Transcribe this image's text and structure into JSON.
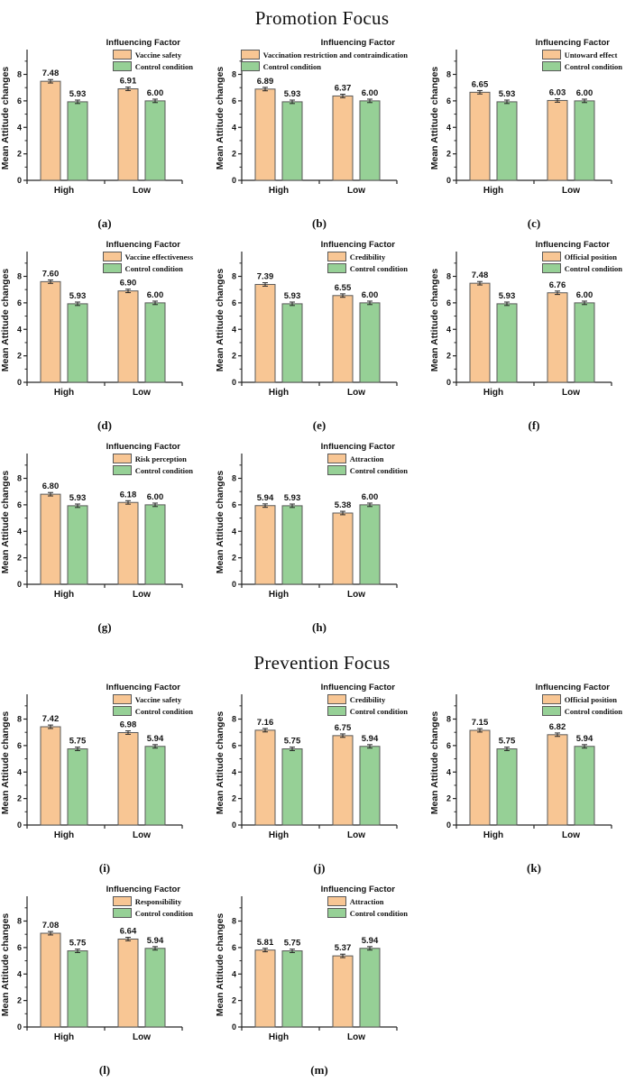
{
  "figure": {
    "sections": [
      {
        "title": "Promotion Focus"
      },
      {
        "title": "Prevention Focus"
      }
    ]
  },
  "axes_common": {
    "ylabel": "Mean Attitude changes",
    "yticks": [
      0,
      2,
      4,
      6,
      8
    ],
    "ylim": [
      0,
      9.6
    ],
    "categories": [
      "High",
      "Low"
    ],
    "legend_title": "Influencing Factor",
    "error_bar_estimate": 0.13,
    "grid": "off",
    "legend_position": "top-right"
  },
  "colors": {
    "factor_fill": "#F8C694",
    "control_fill": "#96D096",
    "bar_border": "#595959",
    "axis": "#262626",
    "text": "#111111"
  },
  "chart_data": [
    {
      "id": "a",
      "section": 0,
      "type": "bar",
      "caption": "(a)",
      "legend_title": "Influencing Factor",
      "categories": [
        "High",
        "Low"
      ],
      "ylabel": "Mean Attitude changes",
      "ylim": [
        0,
        9.6
      ],
      "series": [
        {
          "name": "Vaccine safety",
          "values": [
            7.48,
            6.91
          ]
        },
        {
          "name": "Control condition",
          "values": [
            5.93,
            6.0
          ]
        }
      ]
    },
    {
      "id": "b",
      "section": 0,
      "type": "bar",
      "caption": "(b)",
      "legend_title": "Influencing Factor",
      "categories": [
        "High",
        "Low"
      ],
      "ylabel": "Mean Attitude changes",
      "ylim": [
        0,
        9.6
      ],
      "series": [
        {
          "name": "Vaccination restriction and contraindication",
          "values": [
            6.89,
            6.37
          ]
        },
        {
          "name": "Control condition",
          "values": [
            5.93,
            6.0
          ]
        }
      ]
    },
    {
      "id": "c",
      "section": 0,
      "type": "bar",
      "caption": "(c)",
      "legend_title": "Influencing Factor",
      "categories": [
        "High",
        "Low"
      ],
      "ylabel": "Mean Attitude changes",
      "ylim": [
        0,
        9.6
      ],
      "series": [
        {
          "name": "Untoward effect",
          "values": [
            6.65,
            6.03
          ]
        },
        {
          "name": "Control condition",
          "values": [
            5.93,
            6.0
          ]
        }
      ]
    },
    {
      "id": "d",
      "section": 0,
      "type": "bar",
      "caption": "(d)",
      "legend_title": "Influencing Factor",
      "categories": [
        "High",
        "Low"
      ],
      "ylabel": "Mean Attitude changes",
      "ylim": [
        0,
        9.6
      ],
      "series": [
        {
          "name": "Vaccine effectiveness",
          "values": [
            7.6,
            6.9
          ]
        },
        {
          "name": "Control condition",
          "values": [
            5.93,
            6.0
          ]
        }
      ]
    },
    {
      "id": "e",
      "section": 0,
      "type": "bar",
      "caption": "(e)",
      "legend_title": "Influencing Factor",
      "categories": [
        "High",
        "Low"
      ],
      "ylabel": "Mean Attitude changes",
      "ylim": [
        0,
        9.6
      ],
      "series": [
        {
          "name": "Credibility",
          "values": [
            7.39,
            6.55
          ]
        },
        {
          "name": "Control condition",
          "values": [
            5.93,
            6.0
          ]
        }
      ]
    },
    {
      "id": "f",
      "section": 0,
      "type": "bar",
      "caption": "(f)",
      "legend_title": "Influencing Factor",
      "categories": [
        "High",
        "Low"
      ],
      "ylabel": "Mean Attitude changes",
      "ylim": [
        0,
        9.6
      ],
      "series": [
        {
          "name": "Official position",
          "values": [
            7.48,
            6.76
          ]
        },
        {
          "name": "Control condition",
          "values": [
            5.93,
            6.0
          ]
        }
      ]
    },
    {
      "id": "g",
      "section": 0,
      "type": "bar",
      "caption": "(g)",
      "legend_title": "Influencing Factor",
      "categories": [
        "High",
        "Low"
      ],
      "ylabel": "Mean Attitude changes",
      "ylim": [
        0,
        9.6
      ],
      "series": [
        {
          "name": "Risk perception",
          "values": [
            6.8,
            6.18
          ]
        },
        {
          "name": "Control condition",
          "values": [
            5.93,
            6.0
          ]
        }
      ]
    },
    {
      "id": "h",
      "section": 0,
      "type": "bar",
      "caption": "(h)",
      "legend_title": "Influencing Factor",
      "categories": [
        "High",
        "Low"
      ],
      "ylabel": "Mean Attitude changes",
      "ylim": [
        0,
        9.6
      ],
      "series": [
        {
          "name": "Attraction",
          "values": [
            5.94,
            5.38
          ]
        },
        {
          "name": "Control condition",
          "values": [
            5.93,
            6.0
          ]
        }
      ]
    },
    {
      "id": "i",
      "section": 1,
      "type": "bar",
      "caption": "(i)",
      "legend_title": "Influencing Factor",
      "categories": [
        "High",
        "Low"
      ],
      "ylabel": "Mean Attitude changes",
      "ylim": [
        0,
        9.6
      ],
      "series": [
        {
          "name": "Vaccine safety",
          "values": [
            7.42,
            6.98
          ]
        },
        {
          "name": "Control condition",
          "values": [
            5.75,
            5.94
          ]
        }
      ]
    },
    {
      "id": "j",
      "section": 1,
      "type": "bar",
      "caption": "(j)",
      "legend_title": "Influencing Factor",
      "categories": [
        "High",
        "Low"
      ],
      "ylabel": "Mean Attitude changes",
      "ylim": [
        0,
        9.6
      ],
      "series": [
        {
          "name": "Credibility",
          "values": [
            7.16,
            6.75
          ]
        },
        {
          "name": "Control condition",
          "values": [
            5.75,
            5.94
          ]
        }
      ]
    },
    {
      "id": "k",
      "section": 1,
      "type": "bar",
      "caption": "(k)",
      "legend_title": "Influencing Factor",
      "categories": [
        "High",
        "Low"
      ],
      "ylabel": "Mean Attitude changes",
      "ylim": [
        0,
        9.6
      ],
      "series": [
        {
          "name": "Official position",
          "values": [
            7.15,
            6.82
          ]
        },
        {
          "name": "Control condition",
          "values": [
            5.75,
            5.94
          ]
        }
      ]
    },
    {
      "id": "l",
      "section": 1,
      "type": "bar",
      "caption": "(l)",
      "legend_title": "Influencing Factor",
      "categories": [
        "High",
        "Low"
      ],
      "ylabel": "Mean Attitude changes",
      "ylim": [
        0,
        9.6
      ],
      "series": [
        {
          "name": "Responsibility",
          "values": [
            7.08,
            6.64
          ]
        },
        {
          "name": "Control condition",
          "values": [
            5.75,
            5.94
          ]
        }
      ]
    },
    {
      "id": "m",
      "section": 1,
      "type": "bar",
      "caption": "(m)",
      "legend_title": "Influencing Factor",
      "categories": [
        "High",
        "Low"
      ],
      "ylabel": "Mean Attitude changes",
      "ylim": [
        0,
        9.6
      ],
      "series": [
        {
          "name": "Attraction",
          "values": [
            5.81,
            5.37
          ]
        },
        {
          "name": "Control condition",
          "values": [
            5.75,
            5.94
          ]
        }
      ]
    }
  ]
}
